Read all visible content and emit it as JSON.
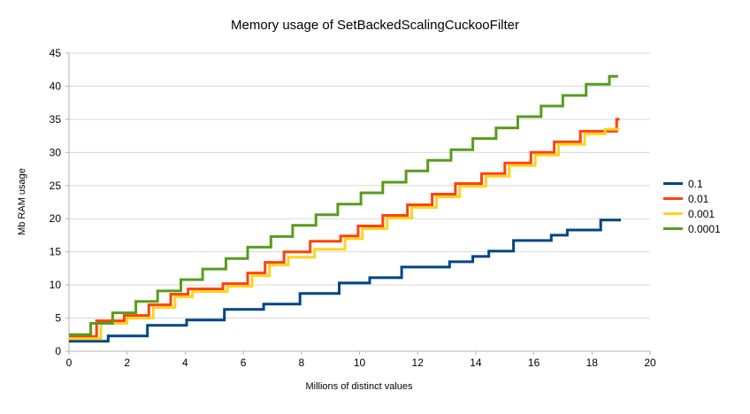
{
  "chart_data": {
    "type": "line",
    "step": "after",
    "title": "Memory usage of SetBackedScalingCuckooFilter",
    "xlabel": "Millions of distinct values",
    "ylabel": "Mb RAM usage",
    "xlim": [
      0,
      20
    ],
    "ylim": [
      0,
      45
    ],
    "xticks": [
      0,
      2,
      4,
      6,
      8,
      10,
      12,
      14,
      16,
      18,
      20
    ],
    "yticks": [
      0,
      5,
      10,
      15,
      20,
      25,
      30,
      35,
      40,
      45
    ],
    "grid": "horizontal",
    "grid_color": "#d9d9d9",
    "axis_color": "#b3b3b3",
    "legend_position": "right",
    "series": [
      {
        "name": "0.1",
        "color": "#004586",
        "x_end": 19.0,
        "points": [
          [
            0,
            1.5
          ],
          [
            1.35,
            2.3
          ],
          [
            2.7,
            3.9
          ],
          [
            4.05,
            4.7
          ],
          [
            5.35,
            6.3
          ],
          [
            6.7,
            7.1
          ],
          [
            7.95,
            8.7
          ],
          [
            9.3,
            10.3
          ],
          [
            10.35,
            11.1
          ],
          [
            11.45,
            12.7
          ],
          [
            13.1,
            13.5
          ],
          [
            13.9,
            14.3
          ],
          [
            14.45,
            15.1
          ],
          [
            15.3,
            16.7
          ],
          [
            16.6,
            17.5
          ],
          [
            17.15,
            18.3
          ],
          [
            18.3,
            19.8
          ]
        ]
      },
      {
        "name": "0.01",
        "color": "#ff420e",
        "x_end": 18.95,
        "points": [
          [
            0,
            2.2
          ],
          [
            0.95,
            4.6
          ],
          [
            1.9,
            5.4
          ],
          [
            2.75,
            7.0
          ],
          [
            3.5,
            8.6
          ],
          [
            4.1,
            9.4
          ],
          [
            5.3,
            10.2
          ],
          [
            6.15,
            11.8
          ],
          [
            6.75,
            13.4
          ],
          [
            7.4,
            15.0
          ],
          [
            8.3,
            16.6
          ],
          [
            9.35,
            17.4
          ],
          [
            9.95,
            18.9
          ],
          [
            10.8,
            20.5
          ],
          [
            11.65,
            22.1
          ],
          [
            12.5,
            23.7
          ],
          [
            13.3,
            25.3
          ],
          [
            14.2,
            26.8
          ],
          [
            15.0,
            28.4
          ],
          [
            15.9,
            30.0
          ],
          [
            16.7,
            31.6
          ],
          [
            17.6,
            33.2
          ],
          [
            18.85,
            35.0
          ]
        ]
      },
      {
        "name": "0.001",
        "color": "#ffd320",
        "x_end": 18.95,
        "points": [
          [
            0,
            1.9
          ],
          [
            1.1,
            4.2
          ],
          [
            2.0,
            5.0
          ],
          [
            2.9,
            6.6
          ],
          [
            3.65,
            8.2
          ],
          [
            4.25,
            9.0
          ],
          [
            5.45,
            9.8
          ],
          [
            6.3,
            11.4
          ],
          [
            6.9,
            13.0
          ],
          [
            7.55,
            14.2
          ],
          [
            8.45,
            15.4
          ],
          [
            9.5,
            17.0
          ],
          [
            10.1,
            18.5
          ],
          [
            10.95,
            20.1
          ],
          [
            11.8,
            21.7
          ],
          [
            12.65,
            23.3
          ],
          [
            13.45,
            24.9
          ],
          [
            14.35,
            26.4
          ],
          [
            15.15,
            28.0
          ],
          [
            16.05,
            29.6
          ],
          [
            16.85,
            31.2
          ],
          [
            17.75,
            32.8
          ],
          [
            18.45,
            33.5
          ]
        ]
      },
      {
        "name": "0.0001",
        "color": "#579d1c",
        "x_end": 18.9,
        "points": [
          [
            0,
            2.5
          ],
          [
            0.75,
            4.2
          ],
          [
            1.5,
            5.8
          ],
          [
            2.3,
            7.5
          ],
          [
            3.05,
            9.1
          ],
          [
            3.85,
            10.8
          ],
          [
            4.6,
            12.4
          ],
          [
            5.4,
            14.0
          ],
          [
            6.15,
            15.7
          ],
          [
            6.95,
            17.3
          ],
          [
            7.7,
            19.0
          ],
          [
            8.5,
            20.6
          ],
          [
            9.25,
            22.2
          ],
          [
            10.05,
            23.9
          ],
          [
            10.8,
            25.5
          ],
          [
            11.6,
            27.2
          ],
          [
            12.35,
            28.8
          ],
          [
            13.15,
            30.4
          ],
          [
            13.9,
            32.1
          ],
          [
            14.7,
            33.7
          ],
          [
            15.45,
            35.4
          ],
          [
            16.25,
            37.0
          ],
          [
            17.0,
            38.6
          ],
          [
            17.8,
            40.3
          ],
          [
            18.6,
            41.5
          ]
        ]
      }
    ]
  }
}
